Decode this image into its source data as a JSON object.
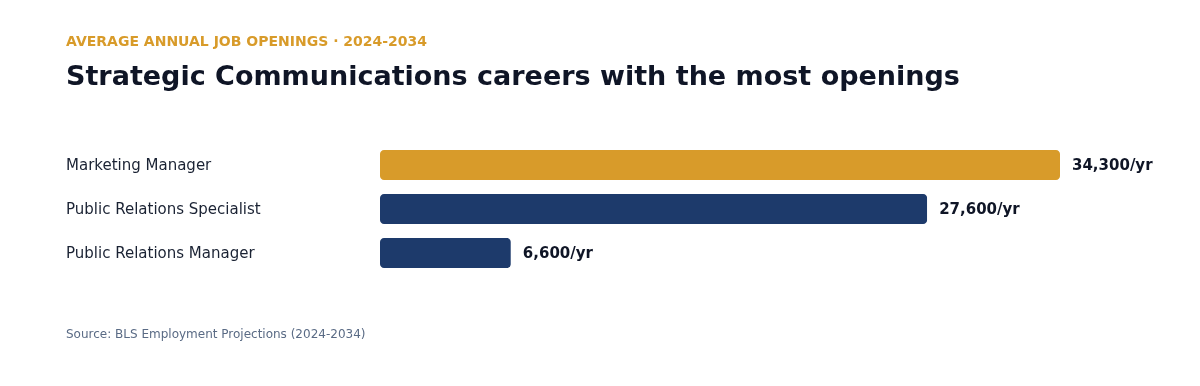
{
  "chart_data": {
    "type": "bar",
    "orientation": "horizontal",
    "subtitle": "AVERAGE ANNUAL JOB OPENINGS · 2024-2034",
    "title": "Strategic Communications careers with the most openings",
    "categories": [
      "Marketing Manager",
      "Public Relations Specialist",
      "Public Relations Manager"
    ],
    "values": [
      34300,
      27600,
      6600
    ],
    "colors": [
      "#d89b2a",
      "#1d3a6b",
      "#1d3a6b"
    ],
    "value_labels": [
      "34,300/yr",
      "27,600/yr",
      "6,600/yr"
    ],
    "annotations": [
      "Source: BLS Employment Projections (2024-2034)"
    ]
  }
}
